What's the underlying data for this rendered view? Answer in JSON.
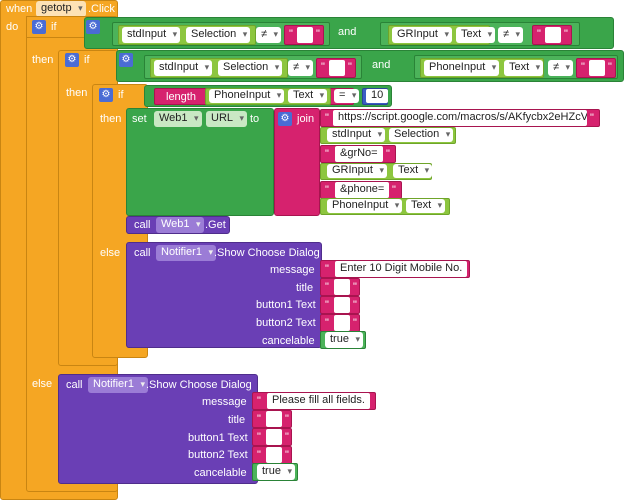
{
  "event": {
    "when": "when",
    "component": "getotp",
    "event_name": ".Click",
    "do": "do"
  },
  "kw": {
    "if": "if",
    "then": "then",
    "else": "else",
    "and": "and",
    "length": "length",
    "set": "set",
    "to": "to",
    "join": "join",
    "call": "call"
  },
  "ops": {
    "neq": "≠",
    "eq": "="
  },
  "fields": {
    "stdInput": "stdInput",
    "Selection": "Selection",
    "GRInput": "GRInput",
    "PhoneInput": "PhoneInput",
    "Text": "Text",
    "Web1": "Web1",
    "URL": "URL",
    "Get": ".Get",
    "Notifier1": "Notifier1",
    "ShowChooseDialog": ".Show Choose Dialog"
  },
  "number": "10",
  "join_strings": {
    "url": "https://script.google.com/macros/s/AKfycbx2eHZcV...",
    "grNo": "&grNo=",
    "phone": "&phone="
  },
  "dialog_params": {
    "message": "message",
    "title": "title",
    "button1": "button1 Text",
    "button2": "button2 Text",
    "cancelable": "cancelable"
  },
  "inner_message": "Enter 10 Digit Mobile No.",
  "outer_message": "Please fill all fields.",
  "bool_true": "true"
}
